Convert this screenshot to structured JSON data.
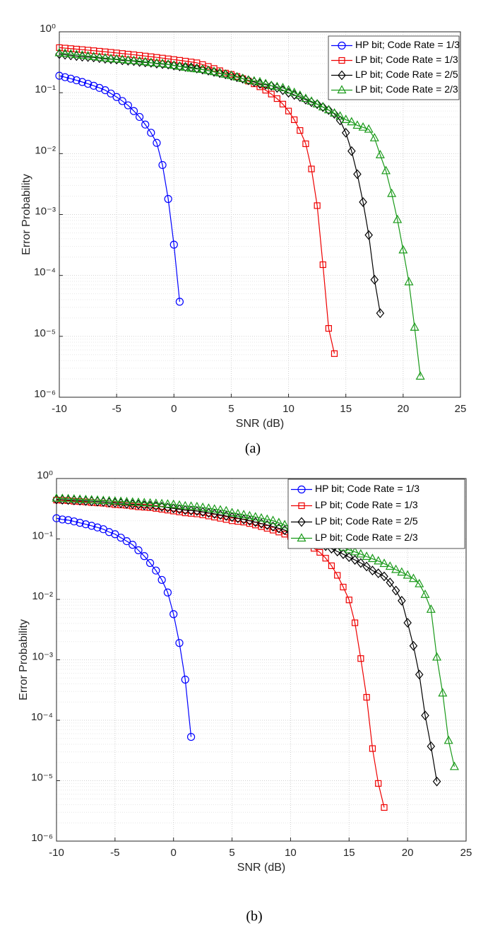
{
  "chart_data": [
    {
      "type": "line",
      "caption": "(a)",
      "x_label": "SNR (dB)",
      "y_label": "Error Probability",
      "log_y": true,
      "grid": true,
      "minor_grid": true,
      "legend": "upper right",
      "xlim": [
        -10,
        25
      ],
      "xticks": [
        -10,
        -5,
        0,
        5,
        10,
        15,
        20,
        25
      ],
      "ylim": [
        1e-06,
        1
      ],
      "yticks": [
        {
          "value": 1e-06,
          "label": "10⁻⁶"
        },
        {
          "value": 1e-05,
          "label": "10⁻⁵"
        },
        {
          "value": 0.0001,
          "label": "10⁻⁴"
        },
        {
          "value": 0.001,
          "label": "10⁻³"
        },
        {
          "value": 0.01,
          "label": "10⁻²"
        },
        {
          "value": 0.1,
          "label": "10⁻¹"
        },
        {
          "value": 1,
          "label": "10⁰"
        }
      ],
      "series": [
        {
          "name": "HP bit; Code Rate = 1/3",
          "color": "#0000ff",
          "marker": "circle",
          "x": [
            -10,
            -9.5,
            -9,
            -8.5,
            -8,
            -7.5,
            -7,
            -6.5,
            -6,
            -5.5,
            -5,
            -4.5,
            -4,
            -3.5,
            -3,
            -2.5,
            -2,
            -1.5,
            -1,
            -0.5,
            0,
            0.5
          ],
          "values": [
            0.19,
            0.18,
            0.17,
            0.16,
            0.15,
            0.14,
            0.13,
            0.12,
            0.11,
            0.097,
            0.085,
            0.073,
            0.062,
            0.05,
            0.04,
            0.03,
            0.022,
            0.015,
            0.0065,
            0.0018,
            0.00032,
            3.7e-05
          ]
        },
        {
          "name": "LP bit; Code Rate = 1/3",
          "color": "#ee0000",
          "marker": "square",
          "x": [
            -10,
            -9.5,
            -9,
            -8.5,
            -8,
            -7.5,
            -7,
            -6.5,
            -6,
            -5.5,
            -5,
            -4.5,
            -4,
            -3.5,
            -3,
            -2.5,
            -2,
            -1.5,
            -1,
            -0.5,
            0,
            0.5,
            1,
            1.5,
            2,
            2.5,
            3,
            3.5,
            4,
            4.5,
            5,
            5.5,
            6,
            6.5,
            7,
            7.5,
            8,
            8.5,
            9,
            9.5,
            10,
            10.5,
            11,
            11.5,
            12,
            12.5,
            13,
            13.5,
            14
          ],
          "values": [
            0.55,
            0.54,
            0.53,
            0.52,
            0.51,
            0.5,
            0.49,
            0.48,
            0.47,
            0.46,
            0.45,
            0.44,
            0.43,
            0.42,
            0.41,
            0.4,
            0.39,
            0.38,
            0.37,
            0.36,
            0.35,
            0.34,
            0.33,
            0.32,
            0.31,
            0.29,
            0.27,
            0.25,
            0.23,
            0.21,
            0.2,
            0.185,
            0.17,
            0.155,
            0.14,
            0.125,
            0.11,
            0.095,
            0.08,
            0.065,
            0.05,
            0.036,
            0.024,
            0.0145,
            0.0056,
            0.0014,
            0.00015,
            1.35e-05,
            5.2e-06
          ]
        },
        {
          "name": "LP bit; Code Rate = 2/5",
          "color": "#000000",
          "marker": "diamond",
          "x": [
            -10,
            -9.5,
            -9,
            -8.5,
            -8,
            -7.5,
            -7,
            -6.5,
            -6,
            -5.5,
            -5,
            -4.5,
            -4,
            -3.5,
            -3,
            -2.5,
            -2,
            -1.5,
            -1,
            -0.5,
            0,
            0.5,
            1,
            1.5,
            2,
            2.5,
            3,
            3.5,
            4,
            4.5,
            5,
            5.5,
            6,
            6.5,
            7,
            7.5,
            8,
            8.5,
            9,
            9.5,
            10,
            10.5,
            11,
            11.5,
            12,
            12.5,
            13,
            13.5,
            14,
            14.5,
            15,
            15.5,
            16,
            16.5,
            17,
            17.5,
            18
          ],
          "values": [
            0.43,
            0.42,
            0.41,
            0.4,
            0.39,
            0.385,
            0.38,
            0.37,
            0.36,
            0.355,
            0.35,
            0.34,
            0.335,
            0.33,
            0.32,
            0.315,
            0.31,
            0.3,
            0.295,
            0.29,
            0.28,
            0.27,
            0.265,
            0.26,
            0.25,
            0.24,
            0.23,
            0.22,
            0.21,
            0.2,
            0.19,
            0.18,
            0.17,
            0.16,
            0.15,
            0.14,
            0.135,
            0.13,
            0.12,
            0.11,
            0.1,
            0.092,
            0.085,
            0.077,
            0.07,
            0.065,
            0.058,
            0.052,
            0.045,
            0.035,
            0.022,
            0.011,
            0.0046,
            0.0016,
            0.00046,
            8.5e-05,
            2.4e-05
          ]
        },
        {
          "name": "LP bit; Code Rate = 2/3",
          "color": "#1a9a1a",
          "marker": "triangle",
          "x": [
            -10,
            -9.5,
            -9,
            -8.5,
            -8,
            -7.5,
            -7,
            -6.5,
            -6,
            -5.5,
            -5,
            -4.5,
            -4,
            -3.5,
            -3,
            -2.5,
            -2,
            -1.5,
            -1,
            -0.5,
            0,
            0.5,
            1,
            1.5,
            2,
            2.5,
            3,
            3.5,
            4,
            4.5,
            5,
            5.5,
            6,
            6.5,
            7,
            7.5,
            8,
            8.5,
            9,
            9.5,
            10,
            10.5,
            11,
            11.5,
            12,
            12.5,
            13,
            13.5,
            14,
            14.5,
            15,
            15.5,
            16,
            16.5,
            17,
            17.5,
            18,
            18.5,
            19,
            19.5,
            20,
            20.5,
            21,
            21.5
          ],
          "values": [
            0.45,
            0.44,
            0.43,
            0.42,
            0.41,
            0.4,
            0.39,
            0.38,
            0.37,
            0.36,
            0.355,
            0.35,
            0.34,
            0.335,
            0.33,
            0.32,
            0.31,
            0.305,
            0.3,
            0.29,
            0.28,
            0.27,
            0.26,
            0.25,
            0.245,
            0.24,
            0.23,
            0.22,
            0.21,
            0.2,
            0.19,
            0.18,
            0.17,
            0.16,
            0.155,
            0.15,
            0.14,
            0.13,
            0.125,
            0.12,
            0.11,
            0.1,
            0.09,
            0.08,
            0.072,
            0.065,
            0.058,
            0.052,
            0.046,
            0.041,
            0.036,
            0.033,
            0.029,
            0.027,
            0.025,
            0.018,
            0.0095,
            0.0052,
            0.0022,
            0.00082,
            0.00026,
            7.8e-05,
            1.4e-05,
            2.2e-06
          ]
        }
      ]
    },
    {
      "type": "line",
      "caption": "(b)",
      "x_label": "SNR (dB)",
      "y_label": "Error Probability",
      "log_y": true,
      "grid": true,
      "minor_grid": true,
      "legend": "upper right",
      "xlim": [
        -10,
        25
      ],
      "xticks": [
        -10,
        -5,
        0,
        5,
        10,
        15,
        20,
        25
      ],
      "ylim": [
        1e-06,
        1
      ],
      "yticks": [
        {
          "value": 1e-06,
          "label": "10⁻⁶"
        },
        {
          "value": 1e-05,
          "label": "10⁻⁵"
        },
        {
          "value": 0.0001,
          "label": "10⁻⁴"
        },
        {
          "value": 0.001,
          "label": "10⁻³"
        },
        {
          "value": 0.01,
          "label": "10⁻²"
        },
        {
          "value": 0.1,
          "label": "10⁻¹"
        },
        {
          "value": 1,
          "label": "10⁰"
        }
      ],
      "series": [
        {
          "name": "HP bit; Code Rate = 1/3",
          "color": "#0000ff",
          "marker": "circle",
          "x": [
            -10,
            -9.5,
            -9,
            -8.5,
            -8,
            -7.5,
            -7,
            -6.5,
            -6,
            -5.5,
            -5,
            -4.5,
            -4,
            -3.5,
            -3,
            -2.5,
            -2,
            -1.5,
            -1,
            -0.5,
            0,
            0.5,
            1,
            1.5
          ],
          "values": [
            0.22,
            0.21,
            0.205,
            0.195,
            0.185,
            0.175,
            0.165,
            0.155,
            0.145,
            0.13,
            0.12,
            0.105,
            0.092,
            0.08,
            0.065,
            0.052,
            0.04,
            0.03,
            0.021,
            0.013,
            0.0057,
            0.0019,
            0.00047,
            5.3e-05
          ]
        },
        {
          "name": "LP bit; Code Rate = 1/3",
          "color": "#ee0000",
          "marker": "square",
          "x": [
            -10,
            -9.5,
            -9,
            -8.5,
            -8,
            -7.5,
            -7,
            -6.5,
            -6,
            -5.5,
            -5,
            -4.5,
            -4,
            -3.5,
            -3,
            -2.5,
            -2,
            -1.5,
            -1,
            -0.5,
            0,
            0.5,
            1,
            1.5,
            2,
            2.5,
            3,
            3.5,
            4,
            4.5,
            5,
            5.5,
            6,
            6.5,
            7,
            7.5,
            8,
            8.5,
            9,
            9.5,
            10,
            10.5,
            11,
            11.5,
            12,
            12.5,
            13,
            13.5,
            14,
            14.5,
            15,
            15.5,
            16,
            16.5,
            17,
            17.5,
            18
          ],
          "values": [
            0.44,
            0.435,
            0.43,
            0.42,
            0.415,
            0.41,
            0.4,
            0.395,
            0.39,
            0.38,
            0.37,
            0.365,
            0.36,
            0.35,
            0.34,
            0.335,
            0.33,
            0.32,
            0.31,
            0.3,
            0.29,
            0.28,
            0.27,
            0.265,
            0.26,
            0.25,
            0.24,
            0.23,
            0.22,
            0.21,
            0.2,
            0.195,
            0.19,
            0.18,
            0.17,
            0.16,
            0.15,
            0.14,
            0.13,
            0.12,
            0.11,
            0.1,
            0.09,
            0.08,
            0.07,
            0.06,
            0.048,
            0.036,
            0.025,
            0.016,
            0.0098,
            0.0041,
            0.00105,
            0.00024,
            3.4e-05,
            9e-06,
            3.6e-06
          ]
        },
        {
          "name": "LP bit; Code Rate = 2/5",
          "color": "#000000",
          "marker": "diamond",
          "x": [
            -10,
            -9.5,
            -9,
            -8.5,
            -8,
            -7.5,
            -7,
            -6.5,
            -6,
            -5.5,
            -5,
            -4.5,
            -4,
            -3.5,
            -3,
            -2.5,
            -2,
            -1.5,
            -1,
            -0.5,
            0,
            0.5,
            1,
            1.5,
            2,
            2.5,
            3,
            3.5,
            4,
            4.5,
            5,
            5.5,
            6,
            6.5,
            7,
            7.5,
            8,
            8.5,
            9,
            9.5,
            10,
            10.5,
            11,
            11.5,
            12,
            12.5,
            13,
            13.5,
            14,
            14.5,
            15,
            15.5,
            16,
            16.5,
            17,
            17.5,
            18,
            18.5,
            19,
            19.5,
            20,
            20.5,
            21,
            21.5,
            22,
            22.5
          ],
          "values": [
            0.45,
            0.445,
            0.44,
            0.435,
            0.43,
            0.425,
            0.42,
            0.415,
            0.41,
            0.4,
            0.395,
            0.39,
            0.38,
            0.375,
            0.37,
            0.36,
            0.355,
            0.35,
            0.34,
            0.33,
            0.32,
            0.31,
            0.3,
            0.295,
            0.29,
            0.28,
            0.27,
            0.26,
            0.25,
            0.24,
            0.23,
            0.22,
            0.21,
            0.2,
            0.19,
            0.18,
            0.17,
            0.16,
            0.15,
            0.14,
            0.13,
            0.12,
            0.11,
            0.1,
            0.092,
            0.084,
            0.076,
            0.069,
            0.062,
            0.056,
            0.05,
            0.045,
            0.04,
            0.035,
            0.03,
            0.027,
            0.024,
            0.019,
            0.014,
            0.0095,
            0.0041,
            0.0017,
            0.00057,
            0.00012,
            3.7e-05,
            9.7e-06
          ]
        },
        {
          "name": "LP bit; Code Rate = 2/3",
          "color": "#1a9a1a",
          "marker": "triangle",
          "x": [
            -10,
            -9.5,
            -9,
            -8.5,
            -8,
            -7.5,
            -7,
            -6.5,
            -6,
            -5.5,
            -5,
            -4.5,
            -4,
            -3.5,
            -3,
            -2.5,
            -2,
            -1.5,
            -1,
            -0.5,
            0,
            0.5,
            1,
            1.5,
            2,
            2.5,
            3,
            3.5,
            4,
            4.5,
            5,
            5.5,
            6,
            6.5,
            7,
            7.5,
            8,
            8.5,
            9,
            9.5,
            10,
            10.5,
            11,
            11.5,
            12,
            12.5,
            13,
            13.5,
            14,
            14.5,
            15,
            15.5,
            16,
            16.5,
            17,
            17.5,
            18,
            18.5,
            19,
            19.5,
            20,
            20.5,
            21,
            21.5,
            22,
            22.5,
            23,
            23.5,
            24
          ],
          "values": [
            0.47,
            0.465,
            0.46,
            0.455,
            0.45,
            0.445,
            0.44,
            0.435,
            0.43,
            0.425,
            0.42,
            0.415,
            0.41,
            0.405,
            0.4,
            0.395,
            0.39,
            0.385,
            0.38,
            0.375,
            0.37,
            0.36,
            0.35,
            0.345,
            0.34,
            0.33,
            0.32,
            0.31,
            0.3,
            0.29,
            0.27,
            0.26,
            0.25,
            0.24,
            0.23,
            0.22,
            0.21,
            0.2,
            0.185,
            0.17,
            0.155,
            0.14,
            0.13,
            0.12,
            0.11,
            0.1,
            0.092,
            0.085,
            0.078,
            0.072,
            0.066,
            0.061,
            0.056,
            0.051,
            0.047,
            0.043,
            0.039,
            0.035,
            0.031,
            0.028,
            0.025,
            0.022,
            0.018,
            0.012,
            0.0068,
            0.0011,
            0.00028,
            4.6e-05,
            1.7e-05
          ]
        }
      ]
    }
  ]
}
